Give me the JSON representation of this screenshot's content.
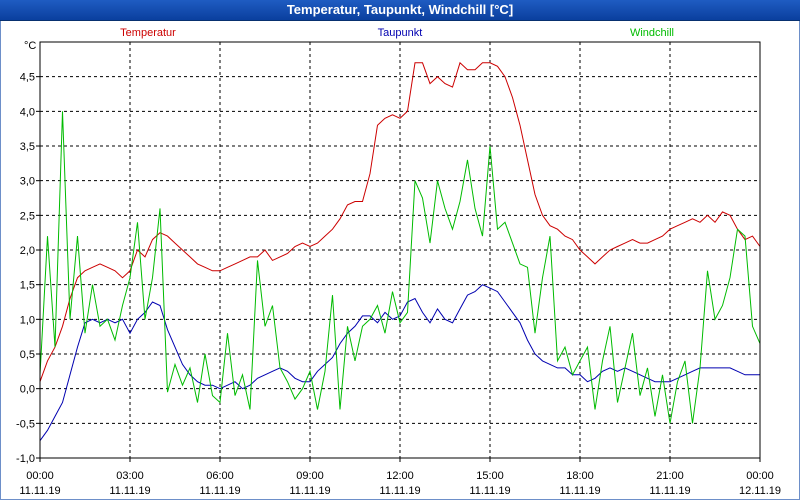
{
  "window": {
    "title": "Temperatur, Taupunkt, Windchill [°C]"
  },
  "chart_data": {
    "type": "line",
    "title": "Temperatur, Taupunkt, Windchill [°C]",
    "ylabel": "°C",
    "xlabel": "",
    "ylim": [
      -1.0,
      5.0
    ],
    "xlim": [
      0,
      24
    ],
    "grid": true,
    "y_ticks": [
      {
        "value": -1.0,
        "label": "-1,0"
      },
      {
        "value": -0.5,
        "label": "-0,5"
      },
      {
        "value": 0.0,
        "label": "0,0"
      },
      {
        "value": 0.5,
        "label": "0,5"
      },
      {
        "value": 1.0,
        "label": "1,0"
      },
      {
        "value": 1.5,
        "label": "1,5"
      },
      {
        "value": 2.0,
        "label": "2,0"
      },
      {
        "value": 2.5,
        "label": "2,5"
      },
      {
        "value": 3.0,
        "label": "3,0"
      },
      {
        "value": 3.5,
        "label": "3,5"
      },
      {
        "value": 4.0,
        "label": "4,0"
      },
      {
        "value": 4.5,
        "label": "4,5"
      }
    ],
    "x_ticks": [
      {
        "value": 0,
        "time": "00:00",
        "date": "11.11.19"
      },
      {
        "value": 3,
        "time": "03:00",
        "date": "11.11.19"
      },
      {
        "value": 6,
        "time": "06:00",
        "date": "11.11.19"
      },
      {
        "value": 9,
        "time": "09:00",
        "date": "11.11.19"
      },
      {
        "value": 12,
        "time": "12:00",
        "date": "11.11.19"
      },
      {
        "value": 15,
        "time": "15:00",
        "date": "11.11.19"
      },
      {
        "value": 18,
        "time": "18:00",
        "date": "11.11.19"
      },
      {
        "value": 21,
        "time": "21:00",
        "date": "11.11.19"
      },
      {
        "value": 24,
        "time": "00:00",
        "date": "12.11.19"
      }
    ],
    "series": [
      {
        "name": "Temperatur",
        "color": "#cc0000",
        "x": [
          0,
          0.25,
          0.5,
          0.75,
          1,
          1.25,
          1.5,
          1.75,
          2,
          2.25,
          2.5,
          2.75,
          3,
          3.25,
          3.5,
          3.75,
          4,
          4.25,
          4.5,
          4.75,
          5,
          5.25,
          5.5,
          5.75,
          6,
          6.25,
          6.5,
          6.75,
          7,
          7.25,
          7.5,
          7.75,
          8,
          8.25,
          8.5,
          8.75,
          9,
          9.25,
          9.5,
          9.75,
          10,
          10.25,
          10.5,
          10.75,
          11,
          11.25,
          11.5,
          11.75,
          12,
          12.25,
          12.5,
          12.75,
          13,
          13.25,
          13.5,
          13.75,
          14,
          14.25,
          14.5,
          14.75,
          15,
          15.25,
          15.5,
          15.75,
          16,
          16.25,
          16.5,
          16.75,
          17,
          17.25,
          17.5,
          17.75,
          18,
          18.25,
          18.5,
          18.75,
          19,
          19.25,
          19.5,
          19.75,
          20,
          20.25,
          20.5,
          20.75,
          21,
          21.25,
          21.5,
          21.75,
          22,
          22.25,
          22.5,
          22.75,
          23,
          23.25,
          23.5,
          23.75,
          24
        ],
        "values": [
          0.1,
          0.4,
          0.6,
          0.9,
          1.3,
          1.6,
          1.7,
          1.75,
          1.8,
          1.75,
          1.7,
          1.6,
          1.7,
          2.0,
          1.9,
          2.15,
          2.25,
          2.2,
          2.1,
          2.0,
          1.9,
          1.8,
          1.75,
          1.7,
          1.7,
          1.75,
          1.8,
          1.85,
          1.9,
          1.9,
          2.0,
          1.85,
          1.9,
          1.95,
          2.05,
          2.1,
          2.05,
          2.1,
          2.2,
          2.3,
          2.45,
          2.65,
          2.7,
          2.7,
          3.1,
          3.8,
          3.9,
          3.95,
          3.9,
          4.0,
          4.7,
          4.7,
          4.4,
          4.5,
          4.4,
          4.35,
          4.7,
          4.6,
          4.6,
          4.7,
          4.7,
          4.65,
          4.5,
          4.2,
          3.8,
          3.3,
          2.8,
          2.5,
          2.35,
          2.3,
          2.2,
          2.15,
          2.0,
          1.9,
          1.8,
          1.9,
          2.0,
          2.05,
          2.1,
          2.15,
          2.1,
          2.1,
          2.15,
          2.2,
          2.3,
          2.35,
          2.4,
          2.45,
          2.4,
          2.5,
          2.4,
          2.55,
          2.5,
          2.3,
          2.15,
          2.2,
          2.05
        ]
      },
      {
        "name": "Taupunkt",
        "color": "#0000b0",
        "x": [
          0,
          0.25,
          0.5,
          0.75,
          1,
          1.25,
          1.5,
          1.75,
          2,
          2.25,
          2.5,
          2.75,
          3,
          3.25,
          3.5,
          3.75,
          4,
          4.25,
          4.5,
          4.75,
          5,
          5.25,
          5.5,
          5.75,
          6,
          6.25,
          6.5,
          6.75,
          7,
          7.25,
          7.5,
          7.75,
          8,
          8.25,
          8.5,
          8.75,
          9,
          9.25,
          9.5,
          9.75,
          10,
          10.25,
          10.5,
          10.75,
          11,
          11.25,
          11.5,
          11.75,
          12,
          12.25,
          12.5,
          12.75,
          13,
          13.25,
          13.5,
          13.75,
          14,
          14.25,
          14.5,
          14.75,
          15,
          15.25,
          15.5,
          15.75,
          16,
          16.25,
          16.5,
          16.75,
          17,
          17.25,
          17.5,
          17.75,
          18,
          18.25,
          18.5,
          18.75,
          19,
          19.25,
          19.5,
          19.75,
          20,
          20.25,
          20.5,
          20.75,
          21,
          21.25,
          21.5,
          21.75,
          22,
          22.25,
          22.5,
          22.75,
          23,
          23.25,
          23.5,
          23.75,
          24
        ],
        "values": [
          -0.75,
          -0.6,
          -0.4,
          -0.2,
          0.2,
          0.6,
          0.95,
          1.0,
          0.95,
          1.0,
          0.95,
          1.0,
          0.8,
          1.0,
          1.1,
          1.25,
          1.2,
          0.85,
          0.6,
          0.35,
          0.2,
          0.1,
          0.05,
          0.05,
          0.0,
          0.05,
          0.1,
          0.0,
          0.05,
          0.15,
          0.2,
          0.25,
          0.3,
          0.25,
          0.15,
          0.1,
          0.1,
          0.25,
          0.35,
          0.45,
          0.65,
          0.8,
          0.9,
          1.05,
          1.05,
          0.95,
          1.1,
          1.0,
          1.05,
          1.25,
          1.3,
          1.1,
          0.95,
          1.15,
          1.0,
          0.95,
          1.15,
          1.35,
          1.4,
          1.5,
          1.45,
          1.4,
          1.25,
          1.1,
          0.95,
          0.7,
          0.5,
          0.4,
          0.35,
          0.3,
          0.3,
          0.2,
          0.2,
          0.1,
          0.15,
          0.25,
          0.3,
          0.25,
          0.3,
          0.25,
          0.2,
          0.15,
          0.1,
          0.1,
          0.1,
          0.15,
          0.2,
          0.25,
          0.3,
          0.3,
          0.3,
          0.3,
          0.3,
          0.25,
          0.2,
          0.2,
          0.2
        ]
      },
      {
        "name": "Windchill",
        "color": "#00bb00",
        "x": [
          0,
          0.25,
          0.5,
          0.75,
          1,
          1.25,
          1.5,
          1.75,
          2,
          2.25,
          2.5,
          2.75,
          3,
          3.25,
          3.5,
          3.75,
          4,
          4.25,
          4.5,
          4.75,
          5,
          5.25,
          5.5,
          5.75,
          6,
          6.25,
          6.5,
          6.75,
          7,
          7.25,
          7.5,
          7.75,
          8,
          8.25,
          8.5,
          8.75,
          9,
          9.25,
          9.5,
          9.75,
          10,
          10.25,
          10.5,
          10.75,
          11,
          11.25,
          11.5,
          11.75,
          12,
          12.25,
          12.5,
          12.75,
          13,
          13.25,
          13.5,
          13.75,
          14,
          14.25,
          14.5,
          14.75,
          15,
          15.25,
          15.5,
          15.75,
          16,
          16.25,
          16.5,
          16.75,
          17,
          17.25,
          17.5,
          17.75,
          18,
          18.25,
          18.5,
          18.75,
          19,
          19.25,
          19.5,
          19.75,
          20,
          20.25,
          20.5,
          20.75,
          21,
          21.25,
          21.5,
          21.75,
          22,
          22.25,
          22.5,
          22.75,
          23,
          23.25,
          23.5,
          23.75,
          24
        ],
        "values": [
          0.2,
          2.2,
          0.6,
          4.0,
          1.0,
          2.2,
          0.8,
          1.5,
          0.9,
          1.0,
          0.7,
          1.2,
          1.6,
          2.4,
          1.0,
          1.6,
          2.6,
          -0.05,
          0.35,
          0.05,
          0.3,
          -0.2,
          0.5,
          -0.1,
          -0.2,
          0.8,
          -0.1,
          0.2,
          -0.3,
          1.85,
          0.9,
          1.2,
          0.3,
          0.1,
          -0.15,
          0.0,
          0.25,
          -0.3,
          0.25,
          1.35,
          -0.3,
          0.9,
          0.4,
          0.9,
          1.0,
          1.2,
          0.8,
          1.4,
          0.95,
          1.1,
          3.0,
          2.75,
          2.1,
          3.0,
          2.6,
          2.3,
          2.7,
          3.3,
          2.6,
          2.2,
          3.5,
          2.3,
          2.4,
          2.1,
          1.8,
          1.75,
          0.8,
          1.6,
          2.2,
          0.4,
          0.6,
          0.2,
          0.4,
          0.6,
          -0.3,
          0.4,
          0.9,
          -0.2,
          0.3,
          0.8,
          -0.1,
          0.3,
          -0.4,
          0.2,
          -0.5,
          0.1,
          0.4,
          -0.5,
          0.3,
          1.7,
          1.0,
          1.2,
          1.6,
          2.3,
          2.2,
          0.9,
          0.65
        ]
      }
    ]
  }
}
